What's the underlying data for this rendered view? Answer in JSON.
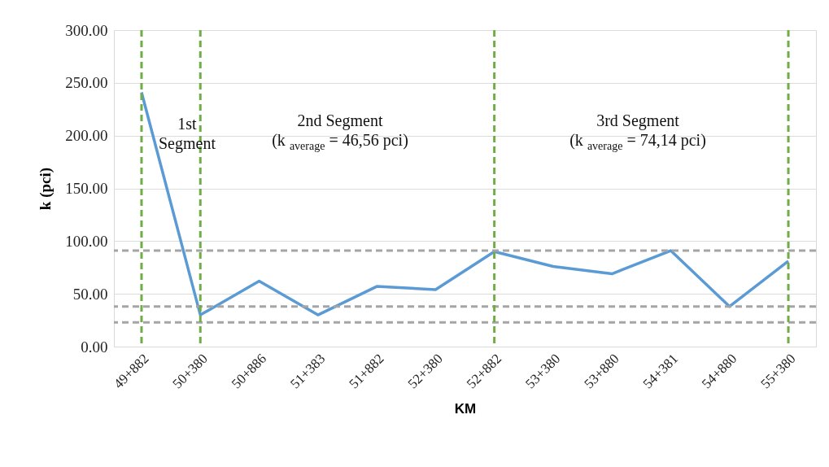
{
  "chart_data": {
    "type": "line",
    "xlabel": "KM",
    "ylabel": "k (pci)",
    "categories": [
      "49+882",
      "50+380",
      "50+886",
      "51+383",
      "51+882",
      "52+380",
      "52+882",
      "53+380",
      "53+880",
      "54+381",
      "54+880",
      "55+380"
    ],
    "series": [
      {
        "color": "#5b9bd5",
        "values": [
          241,
          30,
          62,
          30,
          57,
          54,
          90,
          76,
          69,
          91,
          38,
          81
        ]
      }
    ],
    "ylim": [
      0,
      300
    ],
    "yticks": [
      {
        "value": 0,
        "label": "0.00"
      },
      {
        "value": 50,
        "label": "50.00"
      },
      {
        "value": 100,
        "label": "100.00"
      },
      {
        "value": 150,
        "label": "150.00"
      },
      {
        "value": 200,
        "label": "200.00"
      },
      {
        "value": 250,
        "label": "250.00"
      },
      {
        "value": 300,
        "label": "300.00"
      }
    ],
    "grid": "y",
    "line_style": "solid",
    "ref_lines": [
      {
        "axis": "x",
        "value": "49+882",
        "color": "#70ad47",
        "line_style": "dashed"
      },
      {
        "axis": "x",
        "value": "50+380",
        "color": "#70ad47",
        "line_style": "dashed"
      },
      {
        "axis": "x",
        "value": "52+882",
        "color": "#70ad47",
        "line_style": "dashed"
      },
      {
        "axis": "x",
        "value": "55+380",
        "color": "#70ad47",
        "line_style": "dashed"
      },
      {
        "axis": "y",
        "value": 91,
        "color": "#a5a5a5",
        "line_style": "dashed"
      },
      {
        "axis": "y",
        "value": 38,
        "color": "#a5a5a5",
        "line_style": "dashed"
      },
      {
        "axis": "y",
        "value": 23,
        "color": "#a5a5a5",
        "line_style": "dashed"
      }
    ],
    "annotations": [
      "1st\nSegment",
      "2nd Segment\n(k $_{average}$ = 46,56 pci)",
      "3rd Segment\n(k $_{average}$ = 74,14 pci)"
    ]
  }
}
